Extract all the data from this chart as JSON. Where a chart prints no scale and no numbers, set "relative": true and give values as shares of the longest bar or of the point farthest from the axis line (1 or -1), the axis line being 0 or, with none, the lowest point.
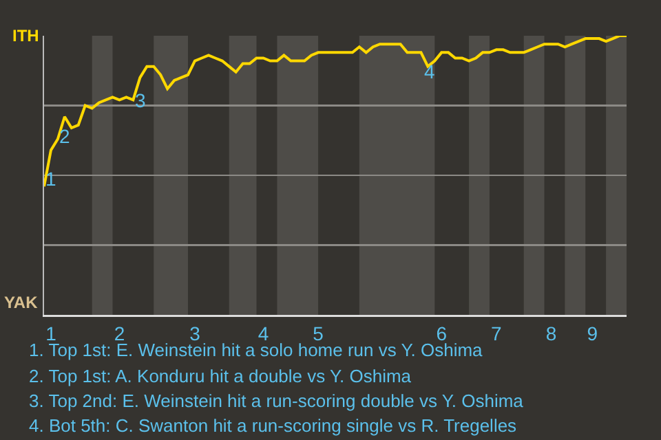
{
  "chart_data": {
    "type": "line",
    "relative": true,
    "categories": [
      null,
      "1",
      null,
      null,
      null,
      null,
      null,
      null,
      null,
      null,
      null,
      "2",
      null,
      null,
      null,
      null,
      null,
      null,
      null,
      null,
      null,
      null,
      "3",
      null,
      null,
      null,
      null,
      null,
      null,
      null,
      null,
      null,
      "4",
      null,
      null,
      null,
      null,
      null,
      null,
      null,
      "5",
      null,
      null,
      null,
      null,
      null,
      null,
      null,
      null,
      null,
      null,
      null,
      null,
      null,
      null,
      null,
      null,
      null,
      "6",
      null,
      null,
      null,
      null,
      null,
      null,
      null,
      "7",
      null,
      null,
      null,
      null,
      null,
      null,
      null,
      "8",
      null,
      null,
      null,
      null,
      null,
      "9",
      null,
      null,
      null,
      null,
      null
    ],
    "series": [
      {
        "color": "#ffd800",
        "values": [
          0.46,
          0.59,
          0.63,
          0.71,
          0.67,
          0.68,
          0.75,
          0.74,
          0.76,
          0.77,
          0.78,
          0.77,
          0.78,
          0.77,
          0.85,
          0.89,
          0.89,
          0.86,
          0.81,
          0.84,
          0.85,
          0.86,
          0.91,
          0.92,
          0.93,
          0.92,
          0.91,
          0.89,
          0.87,
          0.9,
          0.9,
          0.92,
          0.92,
          0.91,
          0.91,
          0.93,
          0.91,
          0.91,
          0.91,
          0.93,
          0.94,
          0.94,
          0.94,
          0.94,
          0.94,
          0.94,
          0.96,
          0.94,
          0.96,
          0.97,
          0.97,
          0.97,
          0.97,
          0.94,
          0.94,
          0.94,
          0.89,
          0.91,
          0.94,
          0.94,
          0.92,
          0.92,
          0.91,
          0.92,
          0.94,
          0.94,
          0.95,
          0.95,
          0.94,
          0.94,
          0.94,
          0.95,
          0.96,
          0.97,
          0.97,
          0.97,
          0.96,
          0.97,
          0.98,
          0.99,
          0.99,
          0.99,
          0.98,
          0.99,
          1,
          1
        ]
      }
    ],
    "grid": "y",
    "annotations": [
      "1",
      "2",
      "3",
      "4",
      "ITH",
      "YAK",
      "1. Top 1st: E. Weinstein hit a solo home run vs Y. Oshima",
      "2. Top 1st: A. Konduru hit a double vs Y. Oshima",
      "3. Top 2nd: E. Weinstein hit a run-scoring double vs Y. Oshima",
      "4. Bot 5th: C. Swanton hit a run-scoring single vs R. Tregelles"
    ]
  }
}
